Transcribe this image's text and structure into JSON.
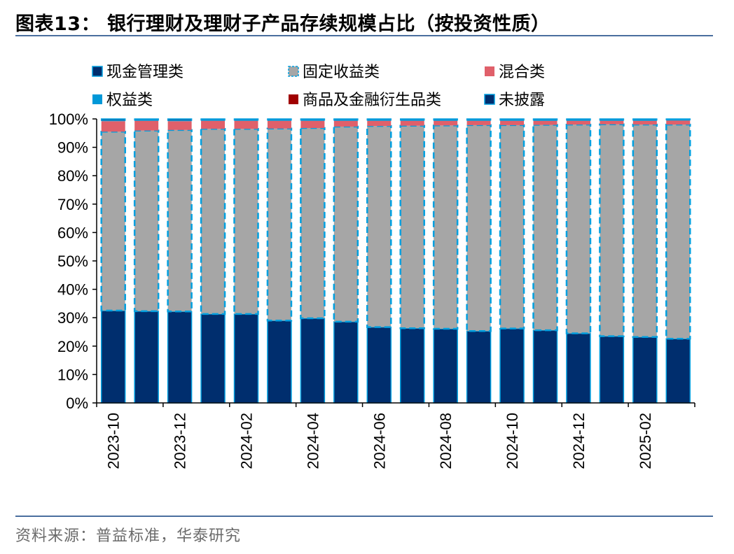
{
  "header": {
    "title": "图表13：  银行理财及理财子产品存续规模占比（按投资性质）"
  },
  "footer": {
    "source": "资料来源：普益标准，华泰研究"
  },
  "chart_data": {
    "type": "bar",
    "stacked": true,
    "percent": true,
    "categories": [
      "2023-10",
      "2023-11",
      "2023-12",
      "2024-01",
      "2024-02",
      "2024-03",
      "2024-04",
      "2024-05",
      "2024-06",
      "2024-07",
      "2024-08",
      "2024-09",
      "2024-10",
      "2024-11",
      "2024-12",
      "2025-01",
      "2025-02",
      "2025-03"
    ],
    "x_tick_labels": [
      "2023-10",
      "2023-12",
      "2024-02",
      "2024-04",
      "2024-06",
      "2024-08",
      "2024-10",
      "2024-12",
      "2025-02"
    ],
    "y_tick_labels": [
      "0%",
      "10%",
      "20%",
      "30%",
      "40%",
      "50%",
      "60%",
      "70%",
      "80%",
      "90%",
      "100%"
    ],
    "ylim": [
      0,
      100
    ],
    "grid": false,
    "legend_position": "top",
    "series": [
      {
        "name": "现金管理类",
        "color": "#002E6E",
        "edge": "#00A0E0",
        "values": [
          32.5,
          32.3,
          32.2,
          31.3,
          31.3,
          29.0,
          29.8,
          28.6,
          26.7,
          26.3,
          26.1,
          25.3,
          26.2,
          25.6,
          24.5,
          23.5,
          23.2,
          22.6
        ]
      },
      {
        "name": "固定收益类",
        "color": "#A6A6A6",
        "edge": "#00A0E0",
        "dashed": true,
        "values": [
          63.0,
          63.6,
          63.9,
          65.2,
          65.2,
          67.6,
          67.0,
          68.7,
          70.8,
          71.3,
          71.6,
          72.5,
          71.6,
          72.3,
          73.5,
          74.6,
          74.8,
          75.4
        ]
      },
      {
        "name": "混合类",
        "color": "#E0606A",
        "values": [
          3.7,
          3.4,
          3.1,
          2.8,
          2.8,
          2.7,
          2.5,
          2.0,
          1.8,
          1.7,
          1.6,
          1.5,
          1.5,
          1.4,
          1.3,
          1.2,
          1.3,
          1.4
        ]
      },
      {
        "name": "权益类",
        "color": "#0098D8",
        "values": [
          0.2,
          0.2,
          0.2,
          0.2,
          0.2,
          0.2,
          0.2,
          0.2,
          0.2,
          0.2,
          0.2,
          0.2,
          0.2,
          0.2,
          0.2,
          0.2,
          0.2,
          0.2
        ]
      },
      {
        "name": "商品及金融衍生品类",
        "color": "#A00000",
        "values": [
          0.1,
          0.1,
          0.1,
          0.1,
          0.1,
          0.1,
          0.1,
          0.1,
          0.1,
          0.1,
          0.1,
          0.1,
          0.1,
          0.1,
          0.1,
          0.1,
          0.1,
          0.1
        ]
      },
      {
        "name": "未披露",
        "color": "#002E6E",
        "edge": "#00A0E0",
        "values": [
          0.5,
          0.4,
          0.5,
          0.4,
          0.4,
          0.4,
          0.4,
          0.4,
          0.4,
          0.4,
          0.4,
          0.4,
          0.4,
          0.4,
          0.4,
          0.4,
          0.4,
          0.3
        ]
      }
    ]
  }
}
